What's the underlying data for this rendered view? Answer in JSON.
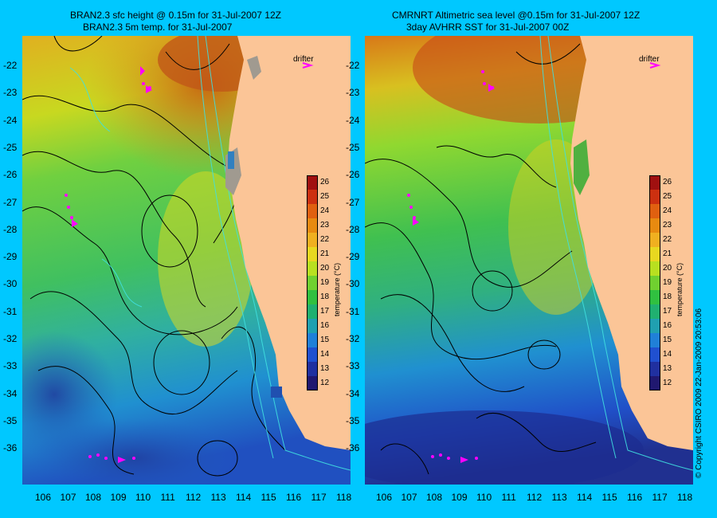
{
  "left_panel": {
    "title_line1": "BRAN2.3 sfc height @ 0.15m for 31-Jul-2007 12Z",
    "title_line2": "BRAN2.3 5m temp. for 31-Jul-2007",
    "drifter_label": "drifter"
  },
  "right_panel": {
    "title_line1": "CMRNRT Altimetric sea level  @0.15m  for 31-Jul-2007 12Z",
    "title_line2": "3day AVHRR SST for 31-Jul-2007 00Z",
    "drifter_label": "drifter"
  },
  "colorbar": {
    "title": "temperature (°C)",
    "ticks": [
      "26",
      "25",
      "24",
      "23",
      "22",
      "21",
      "20",
      "19",
      "18",
      "17",
      "16",
      "15",
      "14",
      "13",
      "12"
    ],
    "colors": [
      "#a01010",
      "#cc3010",
      "#e06010",
      "#e88a10",
      "#f0b020",
      "#e8d820",
      "#b8e020",
      "#70d030",
      "#30c040",
      "#20b070",
      "#20a0b0",
      "#2080d8",
      "#2050d0",
      "#2030a0",
      "#201870"
    ]
  },
  "lat_labels": [
    "-22",
    "-23",
    "-24",
    "-25",
    "-26",
    "-27",
    "-28",
    "-29",
    "-30",
    "-31",
    "-32",
    "-33",
    "-34",
    "-35",
    "-36"
  ],
  "lon_labels": [
    "106",
    "107",
    "108",
    "109",
    "110",
    "111",
    "112",
    "113",
    "114",
    "115",
    "116",
    "117",
    "118"
  ],
  "copyright": "© Copyright CSIRO 2009   22-Jan-2009 20:53:06",
  "colors": {
    "background": "#00c8ff",
    "land": "#fbc597",
    "drifter": "#ff00ff"
  }
}
